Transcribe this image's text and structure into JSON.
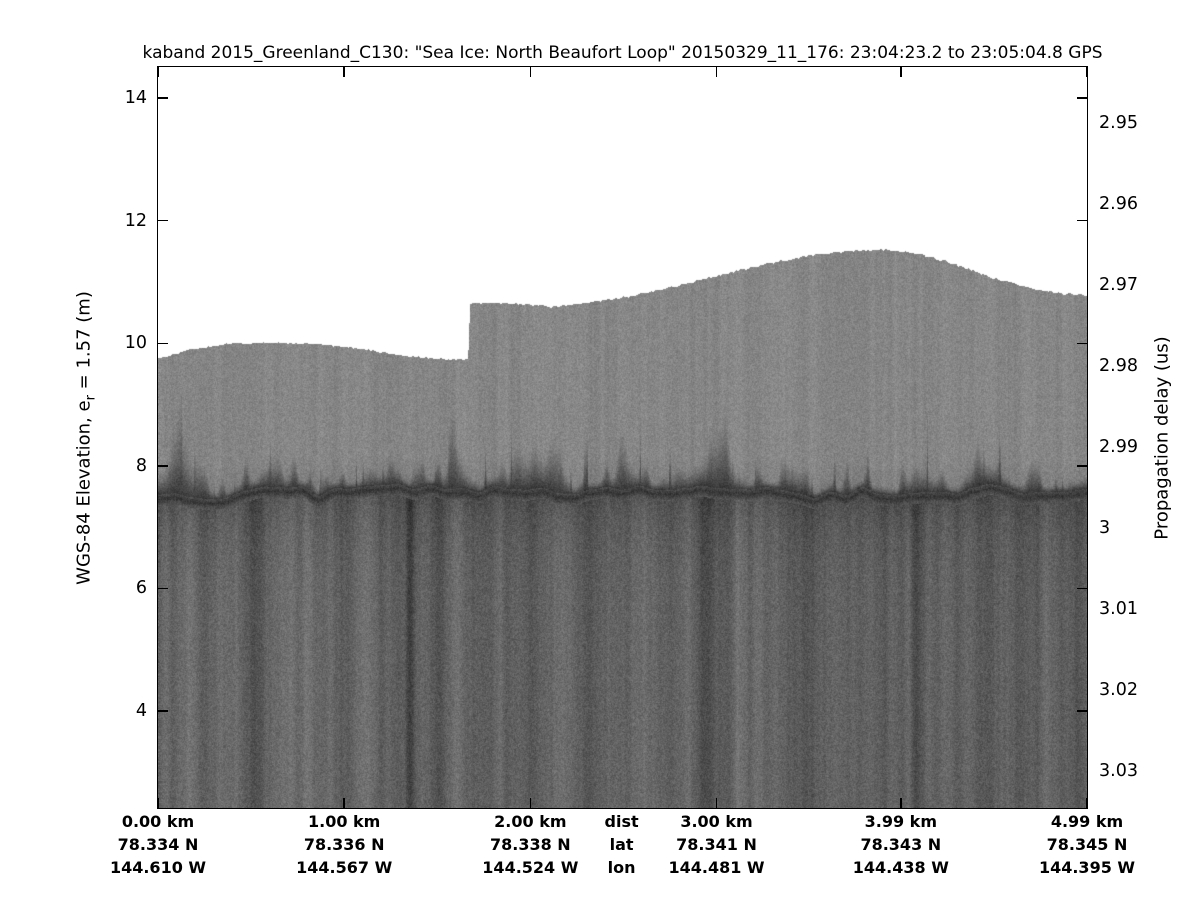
{
  "figure": {
    "background": "#ffffff",
    "text_color": "#000000"
  },
  "chart_data": {
    "type": "heatmap",
    "title": "kaband 2015_Greenland_C130: \"Sea Ice: North Beaufort Loop\"  20150329_11_176: 23:04:23.2 to 23:05:04.8 GPS",
    "left_axis": {
      "label": "WGS-84 Elevation, e_r = 1.57 (m)",
      "label_parts": {
        "pre": "WGS-84 Elevation, e",
        "sub": "r",
        "post": " = 1.57 (m)"
      },
      "ticks": [
        14,
        12,
        10,
        8,
        6,
        4
      ],
      "range_top": 14.506,
      "range_bottom": 2.418,
      "units": "m"
    },
    "right_axis": {
      "label": "Propagation delay (us)",
      "ticks": [
        2.95,
        2.96,
        2.97,
        2.98,
        2.99,
        3,
        3.01,
        3.02,
        3.03
      ],
      "tick_labels": [
        "2.95",
        "2.96",
        "2.97",
        "2.98",
        "2.99",
        "3",
        "3.01",
        "3.02",
        "3.03"
      ],
      "range_top": 2.9431,
      "range_bottom": 3.0346,
      "units": "us"
    },
    "x_axis": {
      "row_labels": [
        "dist",
        "lat",
        "lon"
      ],
      "row_label_km": 2.49,
      "km_max": 4.99,
      "columns": [
        {
          "km": 0.0,
          "dist": "0.00 km",
          "lat": "78.334 N",
          "lon": "144.610 W"
        },
        {
          "km": 1.0,
          "dist": "1.00 km",
          "lat": "78.336 N",
          "lon": "144.567 W"
        },
        {
          "km": 2.0,
          "dist": "2.00 km",
          "lat": "78.338 N",
          "lon": "144.524 W"
        },
        {
          "km": 3.0,
          "dist": "3.00 km",
          "lat": "78.341 N",
          "lon": "144.481 W"
        },
        {
          "km": 3.99,
          "dist": "3.99 km",
          "lat": "78.343 N",
          "lon": "144.438 W"
        },
        {
          "km": 4.99,
          "dist": "4.99 km",
          "lat": "78.345 N",
          "lon": "144.395 W"
        }
      ]
    },
    "surface_profile": {
      "km": [
        0.0,
        0.17,
        0.36,
        0.63,
        0.85,
        1.08,
        1.32,
        1.52,
        1.665,
        1.676,
        1.85,
        2.0,
        2.12,
        2.3,
        2.55,
        2.8,
        3.05,
        3.3,
        3.55,
        3.75,
        3.9,
        4.05,
        4.25,
        4.5,
        4.7,
        4.85,
        4.99
      ],
      "elevation_m": [
        9.76,
        9.9,
        9.99,
        10.02,
        10.0,
        9.92,
        9.8,
        9.75,
        9.74,
        10.65,
        10.67,
        10.63,
        10.6,
        10.66,
        10.78,
        10.95,
        11.14,
        11.32,
        11.46,
        11.52,
        11.53,
        11.49,
        11.33,
        11.06,
        10.9,
        10.82,
        10.79
      ]
    },
    "ice_interface": {
      "mean_elevation_m": 7.6
    },
    "style": {
      "above_surface": "#ffffff",
      "upper_gray": "#868686",
      "lower_gray": "#616161",
      "band_gray": "#2e2e2e",
      "line_color": "#000000"
    }
  }
}
